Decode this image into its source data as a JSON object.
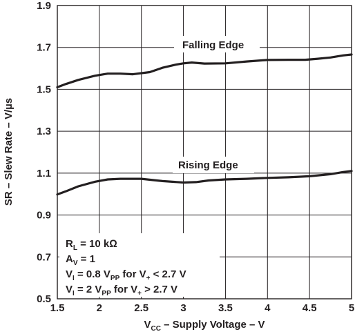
{
  "chart_data": {
    "type": "line",
    "xlabel": {
      "main": "V",
      "sub": "CC",
      "rest": " – Supply Voltage – V"
    },
    "ylabel": "SR – Slew Rate – V/µs",
    "xlim": [
      1.5,
      5
    ],
    "ylim": [
      0.5,
      1.9
    ],
    "x_ticks": [
      "1.5",
      "2",
      "2.5",
      "3",
      "3.5",
      "4",
      "4.5",
      "5"
    ],
    "y_ticks": [
      "0.5",
      "0.7",
      "0.9",
      "1.1",
      "1.3",
      "1.5",
      "1.7",
      "1.9"
    ],
    "grid": true,
    "series": [
      {
        "name": "Falling Edge",
        "x": [
          1.5,
          1.6,
          1.75,
          1.95,
          2.1,
          2.25,
          2.4,
          2.6,
          2.75,
          2.9,
          3.0,
          3.1,
          3.25,
          3.5,
          3.75,
          4.0,
          4.25,
          4.45,
          4.6,
          4.75,
          4.9,
          5.0
        ],
        "y": [
          1.51,
          1.525,
          1.545,
          1.565,
          1.575,
          1.575,
          1.572,
          1.582,
          1.603,
          1.617,
          1.624,
          1.628,
          1.623,
          1.624,
          1.633,
          1.64,
          1.641,
          1.641,
          1.646,
          1.652,
          1.662,
          1.666
        ]
      },
      {
        "name": "Rising Edge",
        "x": [
          1.5,
          1.6,
          1.75,
          1.95,
          2.1,
          2.25,
          2.5,
          2.75,
          3.0,
          3.15,
          3.3,
          3.5,
          3.75,
          4.0,
          4.25,
          4.5,
          4.75,
          4.9,
          5.0
        ],
        "y": [
          0.998,
          1.013,
          1.037,
          1.059,
          1.07,
          1.073,
          1.073,
          1.062,
          1.055,
          1.057,
          1.065,
          1.07,
          1.073,
          1.077,
          1.08,
          1.085,
          1.095,
          1.105,
          1.11
        ]
      }
    ],
    "annotations": {
      "falling_label": "Falling Edge",
      "rising_label": "Rising Edge",
      "conditions": [
        {
          "main": "R",
          "sub": "L",
          "rest": " = 10 kΩ"
        },
        {
          "main": "A",
          "sub": "V",
          "rest": " = 1"
        },
        {
          "main": "V",
          "sub": "I",
          "mid": " = 0.8 V",
          "sub2": "PP",
          "rest": " for V",
          "sub3": "+",
          "rest2": " < 2.7 V"
        },
        {
          "main": "V",
          "sub": "I",
          "mid": " = 2 V",
          "sub2": "PP",
          "rest": " for V",
          "sub3": "+",
          "rest2": " > 2.7 V"
        }
      ]
    }
  }
}
